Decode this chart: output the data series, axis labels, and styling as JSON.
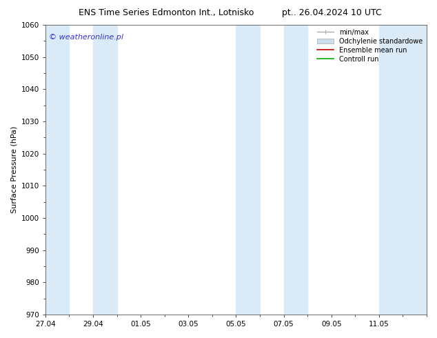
{
  "title_left": "ENS Time Series Edmonton Int., Lotnisko",
  "title_right": "pt.. 26.04.2024 10 UTC",
  "ylabel": "Surface Pressure (hPa)",
  "ylim": [
    970,
    1060
  ],
  "yticks": [
    970,
    980,
    990,
    1000,
    1010,
    1020,
    1030,
    1040,
    1050,
    1060
  ],
  "xlim": [
    0,
    16
  ],
  "xtick_labels": [
    "27.04",
    "29.04",
    "01.05",
    "03.05",
    "05.05",
    "07.05",
    "09.05",
    "11.05"
  ],
  "xtick_positions": [
    0,
    2,
    4,
    6,
    8,
    10,
    12,
    14
  ],
  "shaded_bands": [
    {
      "x_start": 0,
      "x_end": 1
    },
    {
      "x_start": 2,
      "x_end": 3
    },
    {
      "x_start": 8,
      "x_end": 9
    },
    {
      "x_start": 10,
      "x_end": 11
    },
    {
      "x_start": 14,
      "x_end": 16
    }
  ],
  "shaded_color": "#daeaf7",
  "background_color": "#ffffff",
  "watermark": "© weatheronline.pl",
  "watermark_color": "#3333cc",
  "legend_labels": [
    "min/max",
    "Odchylenie standardowe",
    "Ensemble mean run",
    "Controll run"
  ],
  "title_fontsize": 9,
  "axis_label_fontsize": 8,
  "tick_fontsize": 7.5,
  "legend_fontsize": 7,
  "watermark_fontsize": 8
}
